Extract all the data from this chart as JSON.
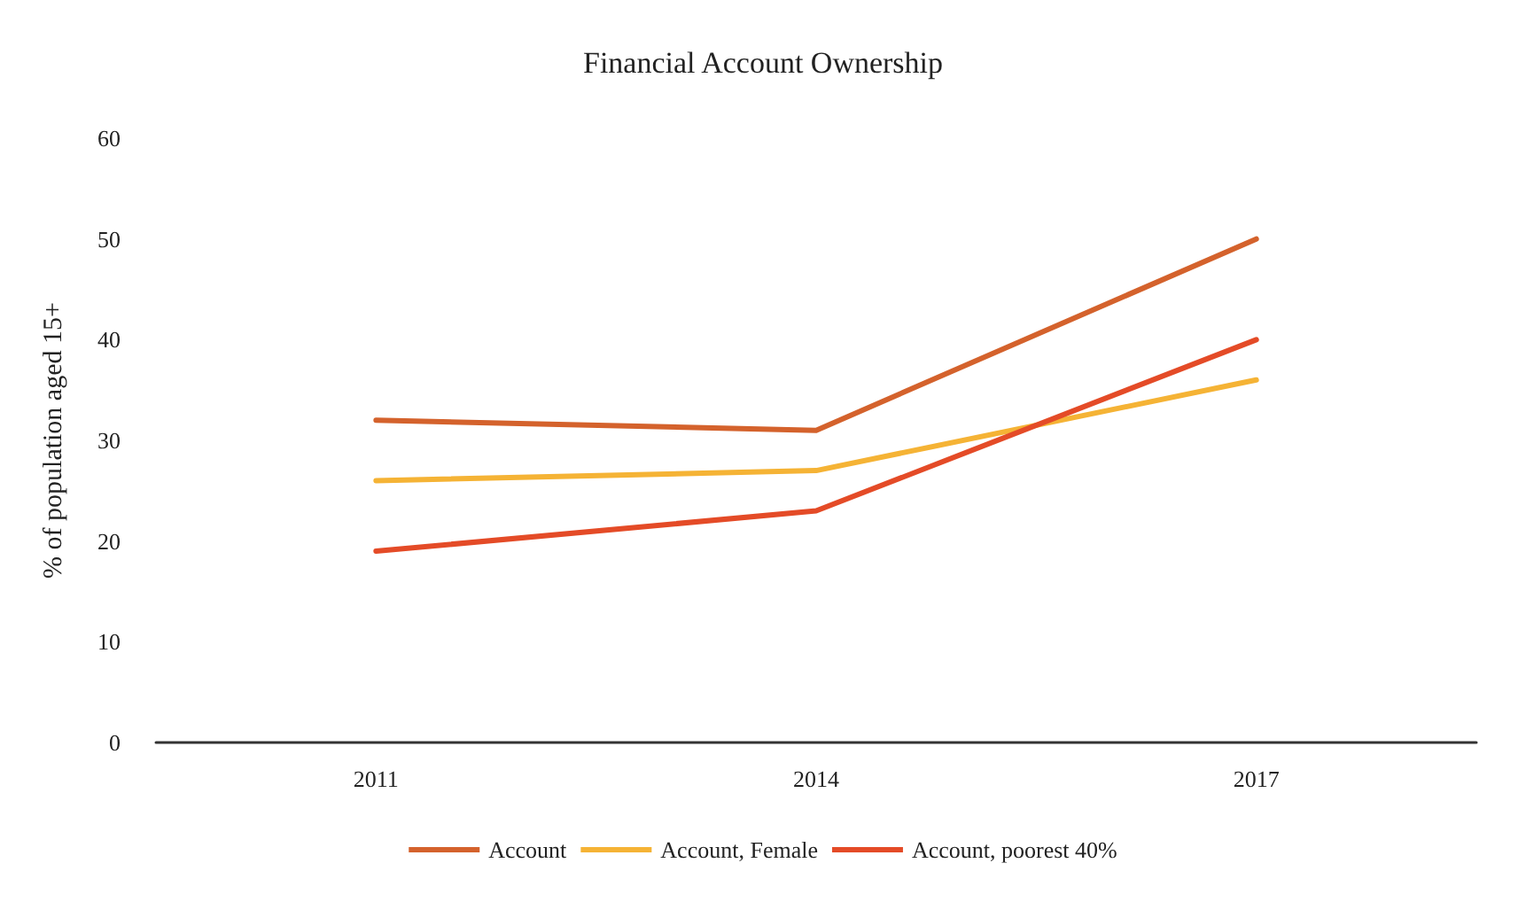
{
  "chart_data": {
    "type": "line",
    "title": "Financial Account Ownership",
    "ylabel": "% of population aged 15+",
    "categories": [
      "2011",
      "2014",
      "2017"
    ],
    "series": [
      {
        "name": "Account",
        "color": "#d4622c",
        "values": [
          32,
          31,
          50
        ]
      },
      {
        "name": "Account, Female",
        "color": "#f5b335",
        "values": [
          26,
          27,
          36
        ]
      },
      {
        "name": "Account, poorest 40%",
        "color": "#e44b27",
        "values": [
          19,
          23,
          40
        ]
      }
    ],
    "ylim": [
      0,
      60
    ],
    "yticks": [
      0,
      10,
      20,
      30,
      40,
      50,
      60
    ],
    "grid": false,
    "legend": "bottom",
    "marker": "none",
    "line_style": "solid"
  }
}
